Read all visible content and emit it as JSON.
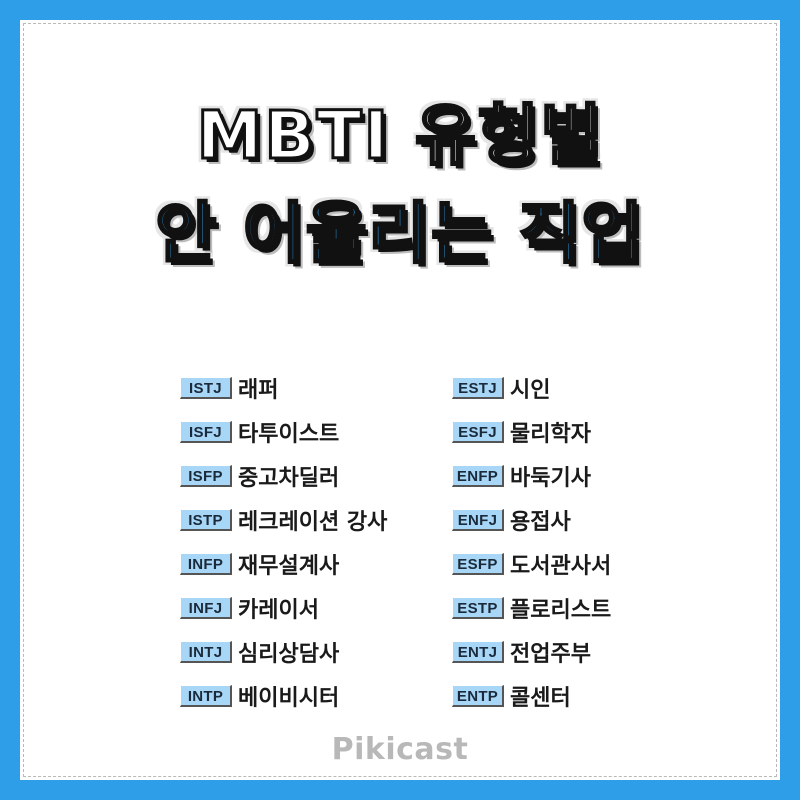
{
  "title": {
    "line1": "MBTI 유형별",
    "line2": "안 어울리는 직업"
  },
  "left_column": [
    {
      "type": "ISTJ",
      "job": "래퍼"
    },
    {
      "type": "ISFJ",
      "job": "타투이스트"
    },
    {
      "type": "ISFP",
      "job": "중고차딜러"
    },
    {
      "type": "ISTP",
      "job": "레크레이션 강사"
    },
    {
      "type": "INFP",
      "job": "재무설계사"
    },
    {
      "type": "INFJ",
      "job": "카레이서"
    },
    {
      "type": "INTJ",
      "job": "심리상담사"
    },
    {
      "type": "INTP",
      "job": "베이비시터"
    }
  ],
  "right_column": [
    {
      "type": "ESTJ",
      "job": "시인"
    },
    {
      "type": "ESFJ",
      "job": "물리학자"
    },
    {
      "type": "ENFP",
      "job": "바둑기사"
    },
    {
      "type": "ENFJ",
      "job": "용접사"
    },
    {
      "type": "ESFP",
      "job": "도서관사서"
    },
    {
      "type": "ESTP",
      "job": "플로리스트"
    },
    {
      "type": "ENTJ",
      "job": "전업주부"
    },
    {
      "type": "ENTP",
      "job": "콜센터"
    }
  ],
  "logo": "Pikicast",
  "colors": {
    "frame": "#2f9ee8",
    "title_accent": "#35a6f4",
    "badge": "#a8d6f7"
  }
}
